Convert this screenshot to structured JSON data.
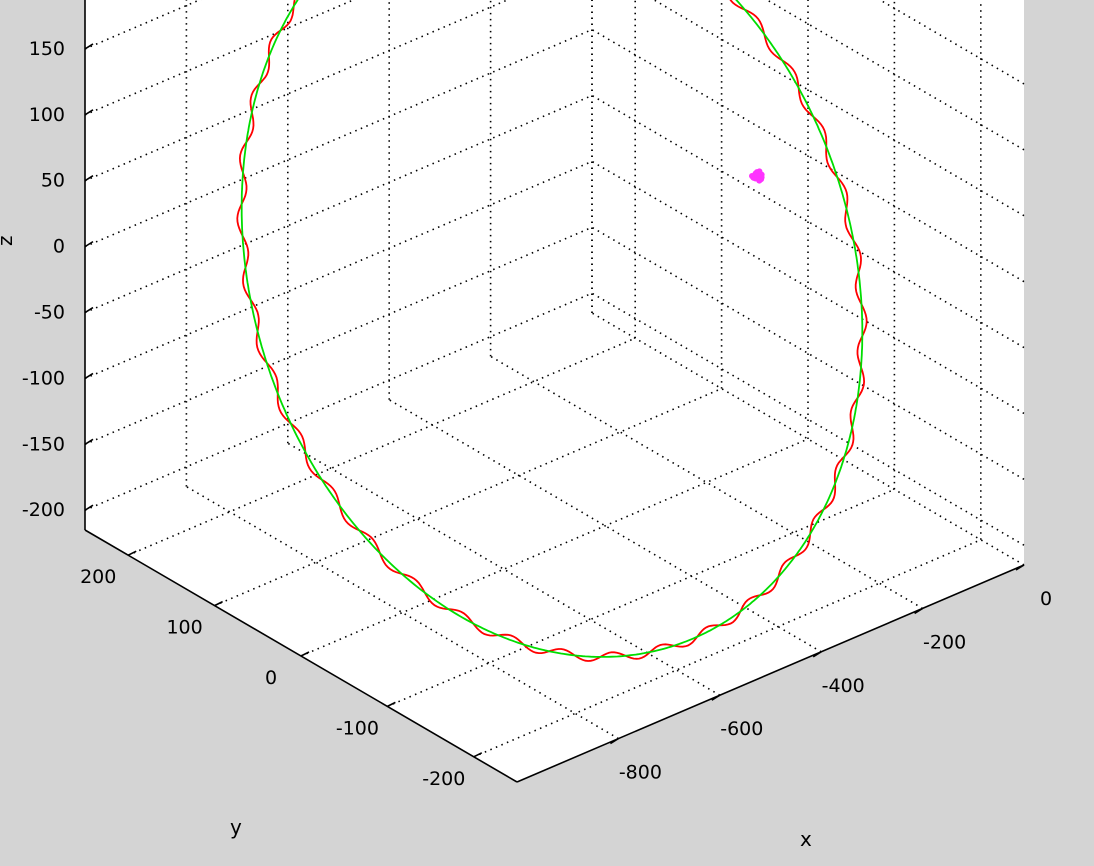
{
  "chart_data": {
    "type": "line",
    "title": "",
    "xlabel": "x",
    "ylabel": "y",
    "zlabel": "z",
    "x_ticks": [
      "0",
      "-200",
      "-400",
      "-600",
      "-800"
    ],
    "y_ticks": [
      "200",
      "100",
      "0",
      "-100",
      "-200"
    ],
    "z_ticks": [
      "150",
      "100",
      "50",
      "0",
      "-50",
      "-100",
      "-150",
      "-200"
    ],
    "grid": true,
    "background": "#ffffff",
    "figure_background": "#d4d4d4",
    "series": [
      {
        "color": "#ff0000",
        "style": "wavy",
        "description_points": [
          [
            -790,
            35,
            -170
          ],
          [
            -500,
            120,
            -150
          ],
          [
            -90,
            160,
            170
          ],
          [
            -250,
            -150,
            -200
          ]
        ]
      },
      {
        "color": "#00dd00",
        "style": "smooth"
      },
      {
        "color": "#ff33ff",
        "style": "marker-cluster",
        "point": [
          -300,
          -60,
          60
        ]
      }
    ]
  }
}
